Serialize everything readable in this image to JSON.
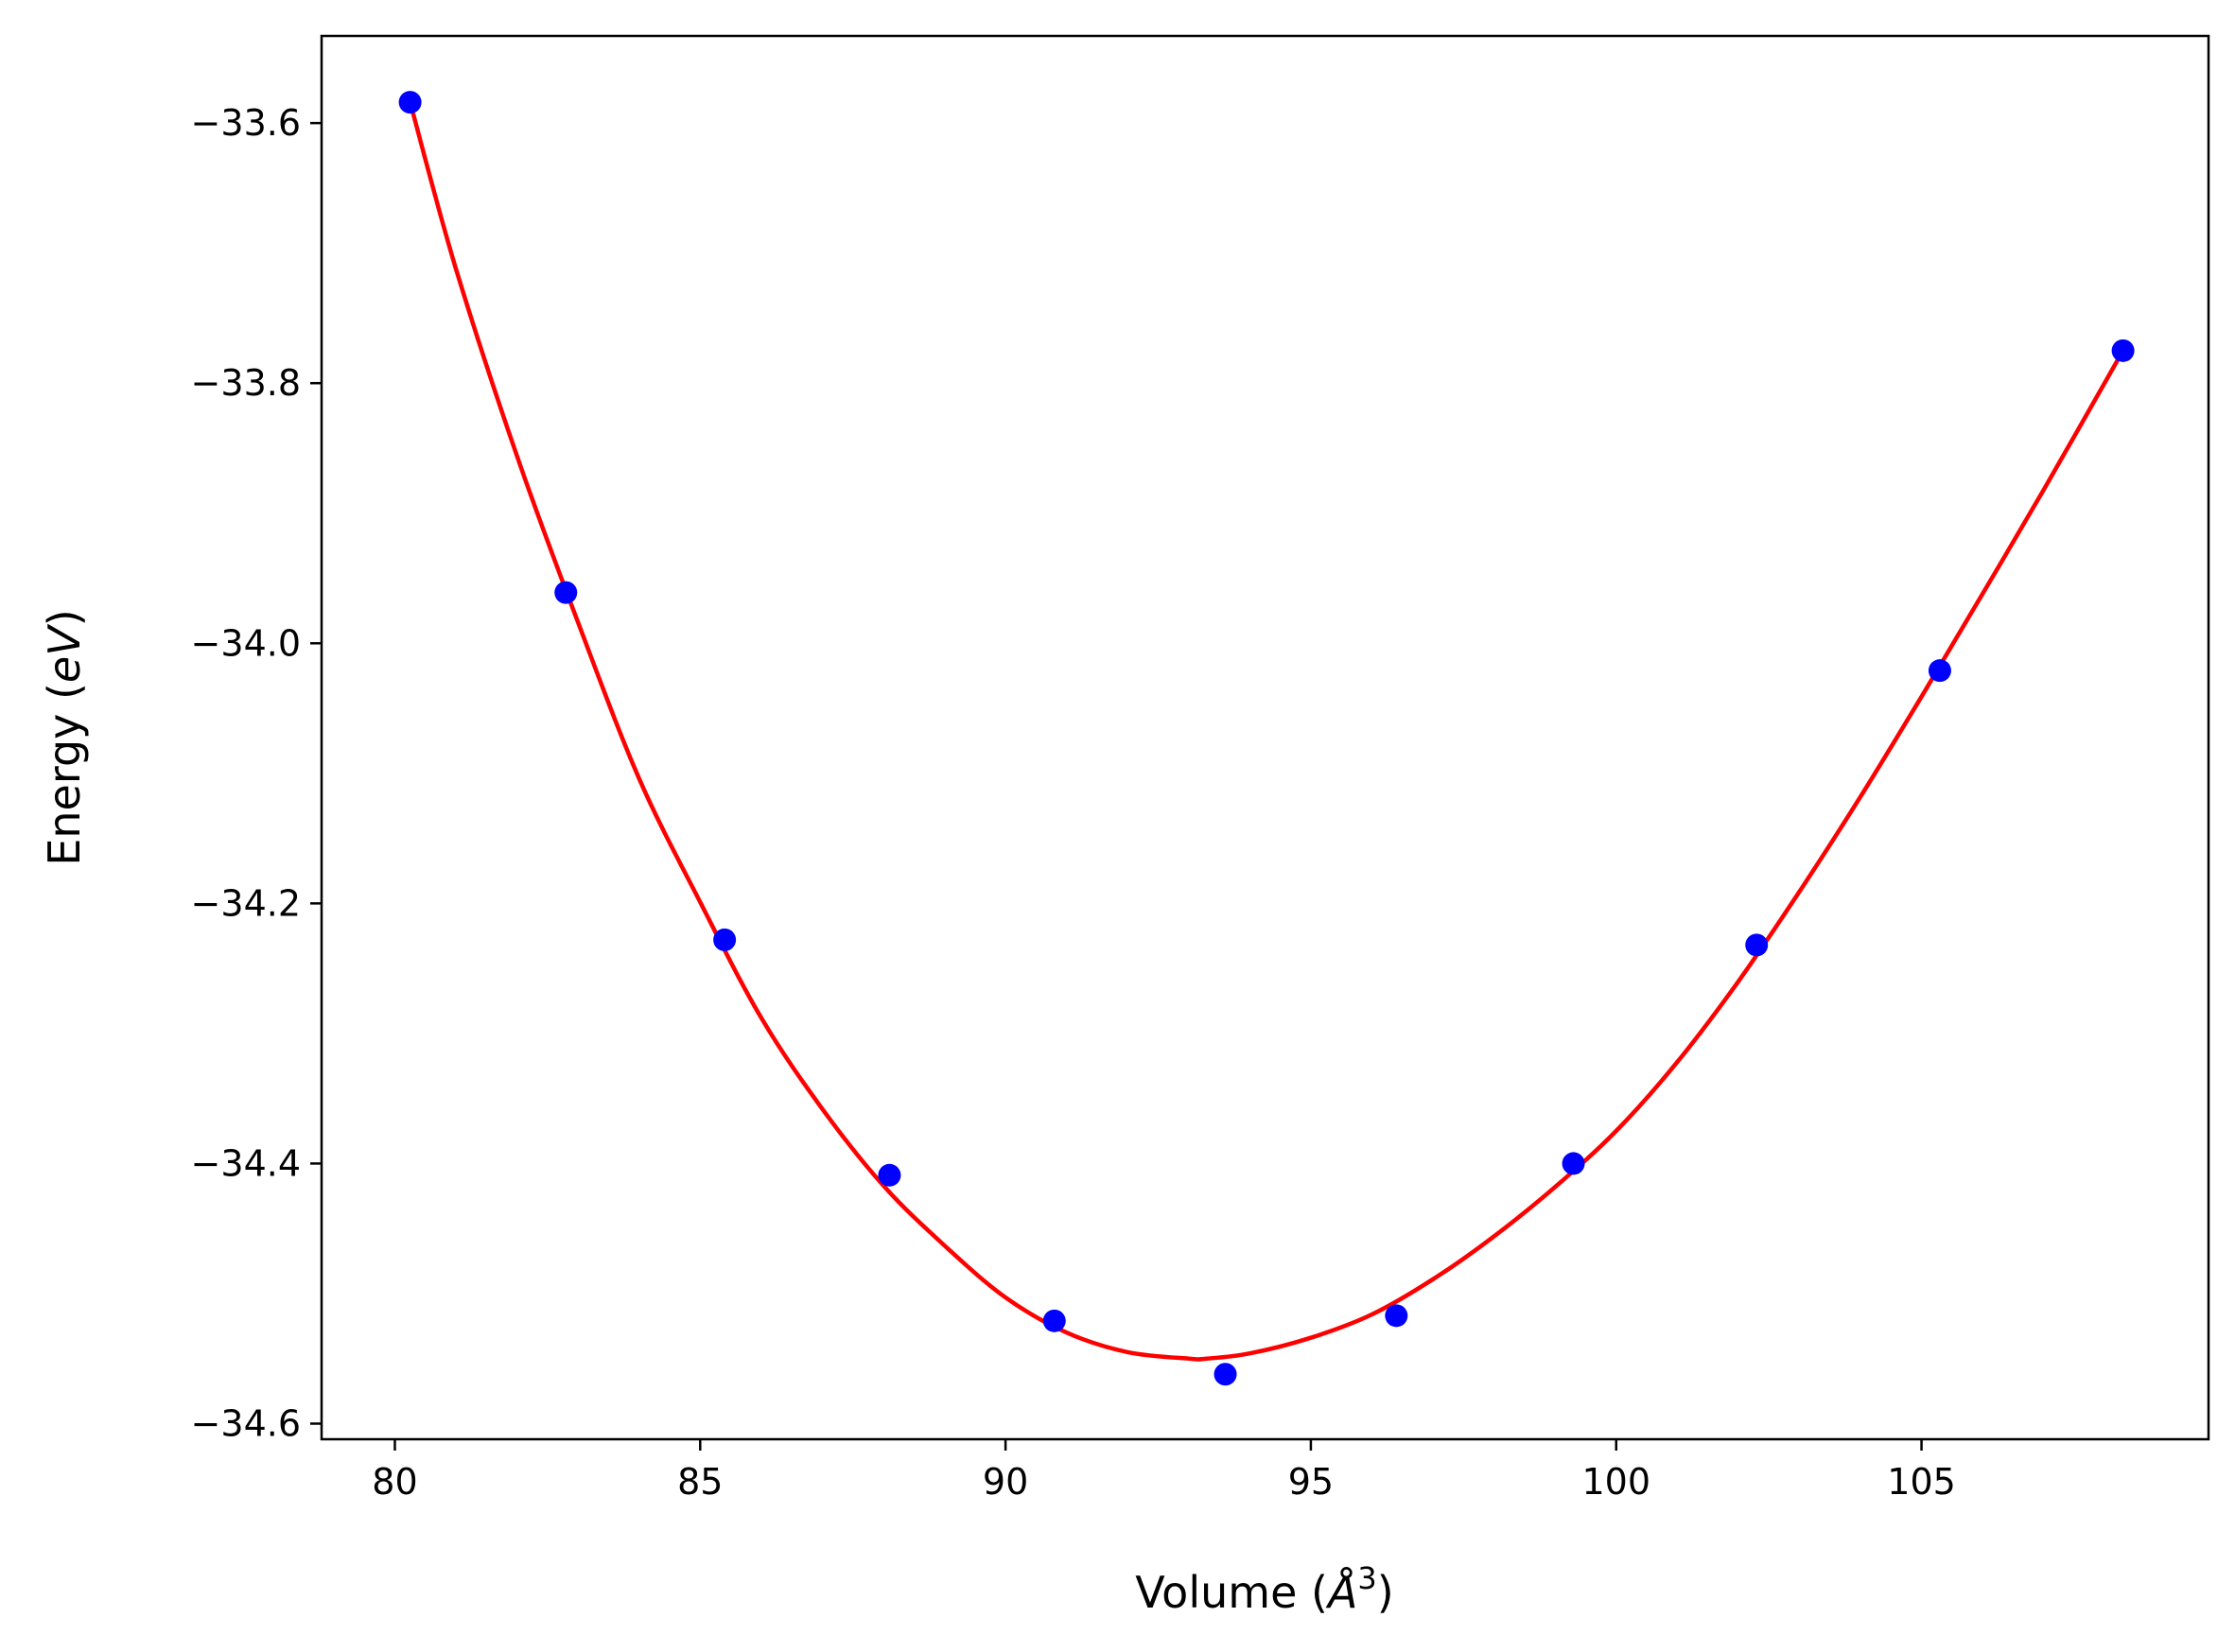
{
  "chart_data": {
    "type": "scatter",
    "xlabel_main": "Volume (",
    "xlabel_italic": "Å",
    "xlabel_sup": "3",
    "xlabel_tail": ")",
    "ylabel_main": "Energy (",
    "ylabel_italic": "eV",
    "ylabel_tail": ")",
    "xlim": [
      78.8,
      109.7
    ],
    "ylim": [
      -34.612,
      -33.533
    ],
    "xticks": [
      80,
      85,
      90,
      95,
      100,
      105
    ],
    "xtick_labels": [
      "80",
      "85",
      "90",
      "95",
      "100",
      "105"
    ],
    "yticks": [
      -33.6,
      -33.8,
      -34.0,
      -34.2,
      -34.4,
      -34.6
    ],
    "ytick_labels": [
      "−33.6",
      "−33.8",
      "−34.0",
      "−34.2",
      "−34.4",
      "−34.6"
    ],
    "grid": false,
    "series": [
      {
        "kind": "points",
        "color": "#0000ff",
        "x": [
          80.25,
          82.8,
          85.4,
          88.1,
          90.8,
          93.6,
          96.4,
          99.3,
          102.3,
          105.3,
          108.3
        ],
        "y": [
          -33.584,
          -33.961,
          -34.228,
          -34.409,
          -34.521,
          -34.562,
          -34.517,
          -34.4,
          -34.232,
          -34.021,
          -33.775
        ]
      },
      {
        "kind": "fit-curve",
        "color": "#ff0000",
        "x": [
          80.25,
          81.0,
          82.0,
          83.0,
          84.0,
          85.0,
          86.0,
          87.0,
          88.0,
          89.0,
          90.0,
          91.0,
          92.0,
          93.0,
          93.3,
          94.0,
          95.0,
          96.0,
          97.0,
          98.0,
          99.0,
          100.0,
          101.0,
          102.0,
          103.0,
          104.0,
          105.0,
          106.0,
          107.0,
          108.3
        ],
        "y": [
          -33.584,
          -33.712,
          -33.856,
          -33.984,
          -34.104,
          -34.199,
          -34.288,
          -34.358,
          -34.417,
          -34.463,
          -34.503,
          -34.53,
          -34.545,
          -34.55,
          -34.55,
          -34.546,
          -34.534,
          -34.516,
          -34.489,
          -34.456,
          -34.418,
          -34.375,
          -34.322,
          -34.26,
          -34.191,
          -34.118,
          -34.041,
          -33.962,
          -33.882,
          -33.775
        ]
      }
    ]
  }
}
